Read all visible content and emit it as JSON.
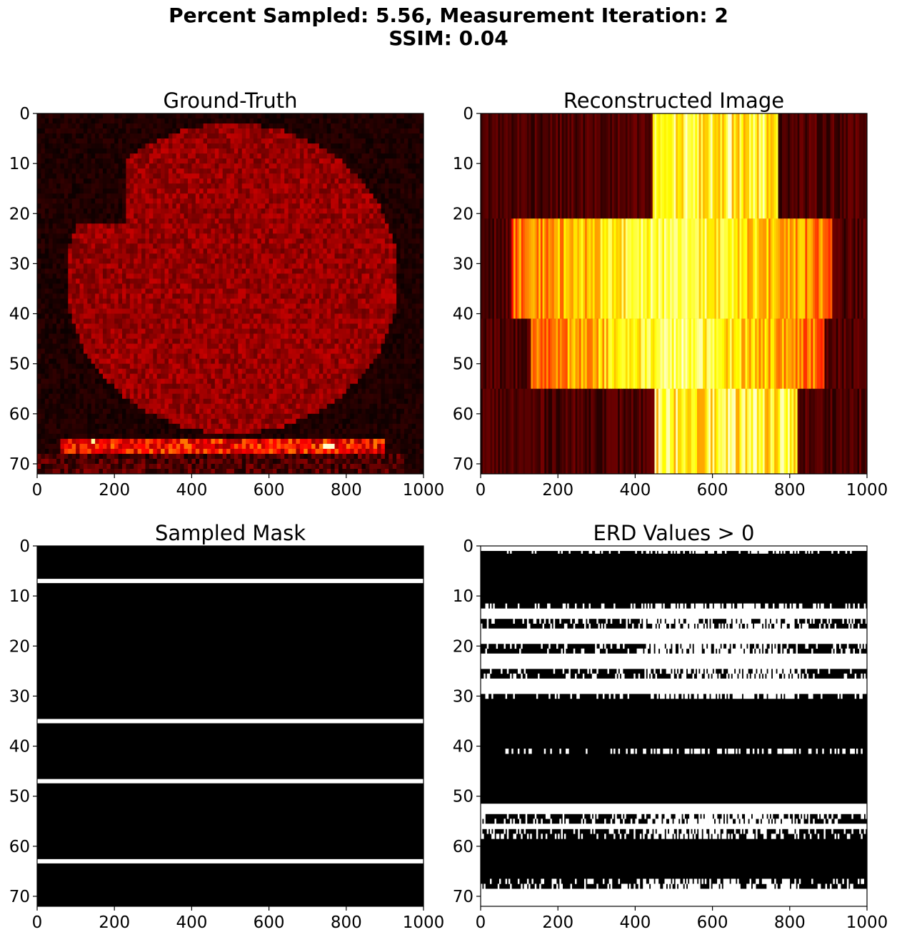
{
  "figure": {
    "title_line1": "Percent Sampled: 5.56, Measurement Iteration: 2",
    "title_line2": "SSIM: 0.04"
  },
  "chart_data": [
    {
      "id": "ground_truth",
      "type": "heatmap",
      "title": "Ground-Truth",
      "colormap": "hot",
      "xlim": [
        0,
        1000
      ],
      "ylim": [
        72,
        0
      ],
      "xticks": [
        0,
        200,
        400,
        600,
        800,
        1000
      ],
      "yticks": [
        0,
        10,
        20,
        30,
        40,
        50,
        60,
        70
      ],
      "shape": [
        72,
        100
      ],
      "description_of_content": "dim red ellipsoidal tissue region spanning roughly x 80-930, rows 3-63, with bright streaks near rows 66-68"
    },
    {
      "id": "reconstructed",
      "type": "heatmap",
      "title": "Reconstructed Image",
      "colormap": "hot",
      "xlim": [
        0,
        1000
      ],
      "ylim": [
        72,
        0
      ],
      "xticks": [
        0,
        200,
        400,
        600,
        800,
        1000
      ],
      "yticks": [
        0,
        10,
        20,
        30,
        40,
        50,
        60,
        70
      ],
      "bands": [
        {
          "rows": [
            0,
            21
          ],
          "bright_x": [
            445,
            770
          ]
        },
        {
          "rows": [
            21,
            41
          ],
          "bright_x": [
            80,
            910
          ]
        },
        {
          "rows": [
            41,
            55
          ],
          "bright_x": [
            130,
            890
          ]
        },
        {
          "rows": [
            55,
            72
          ],
          "bright_x": [
            450,
            820
          ]
        }
      ]
    },
    {
      "id": "sampled_mask",
      "type": "heatmap",
      "title": "Sampled Mask",
      "colormap": "gray",
      "xlim": [
        0,
        1000
      ],
      "ylim": [
        72,
        0
      ],
      "xticks": [
        0,
        200,
        400,
        600,
        800,
        1000
      ],
      "yticks": [
        0,
        10,
        20,
        30,
        40,
        50,
        60,
        70
      ],
      "sampled_rows": [
        7,
        35,
        47,
        63
      ]
    },
    {
      "id": "erd",
      "type": "heatmap",
      "title": "ERD Values > 0",
      "colormap": "gray",
      "xlim": [
        0,
        1000
      ],
      "ylim": [
        72,
        0
      ],
      "xticks": [
        0,
        200,
        400,
        600,
        800,
        1000
      ],
      "yticks": [
        0,
        10,
        20,
        30,
        40,
        50,
        60,
        70
      ],
      "white_rows": [
        0,
        13,
        14,
        17,
        18,
        19,
        22,
        23,
        24,
        27,
        28,
        29,
        52,
        53,
        56,
        69,
        70,
        71
      ],
      "partial_rows": [
        1,
        12,
        15,
        16,
        20,
        21,
        25,
        26,
        30,
        41,
        54,
        55,
        57,
        58,
        67,
        68
      ]
    }
  ]
}
